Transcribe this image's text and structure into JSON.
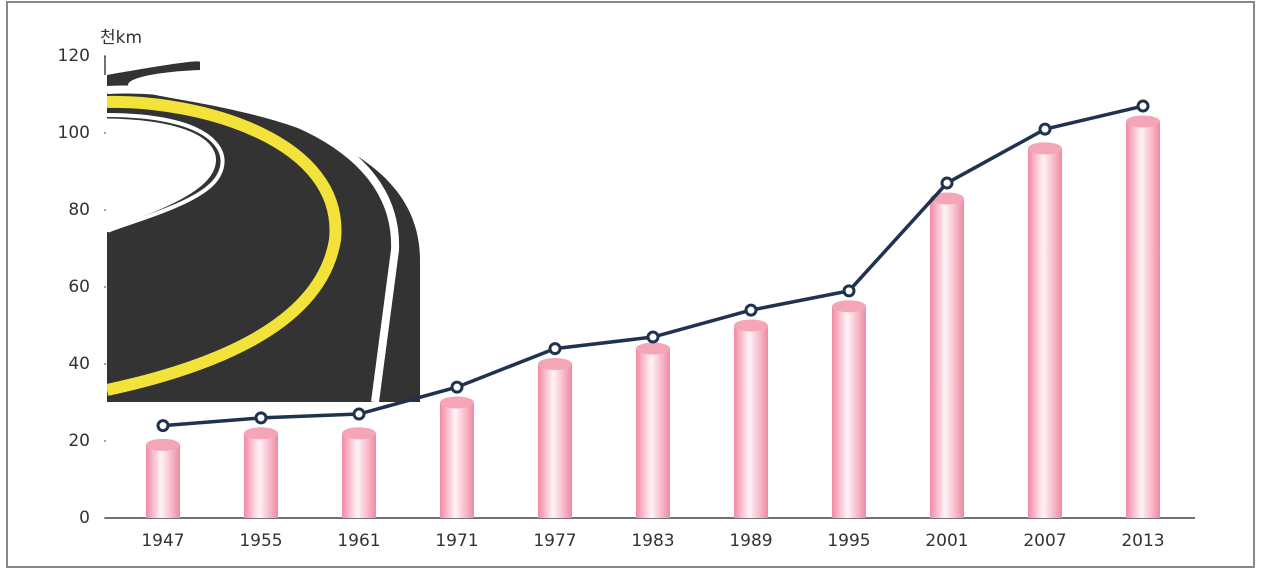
{
  "chart_data": {
    "type": "combo",
    "y_unit": "천km",
    "categories": [
      "1947",
      "1955",
      "1961",
      "1971",
      "1977",
      "1983",
      "1989",
      "1995",
      "2001",
      "2007",
      "2013"
    ],
    "series": [
      {
        "type": "bar",
        "color": "#f4a6b8",
        "values": [
          19,
          22,
          22,
          30,
          40,
          44,
          50,
          55,
          83,
          96,
          103
        ]
      },
      {
        "type": "line",
        "color": "#1f3350",
        "values": [
          24,
          26,
          27,
          34,
          44,
          47,
          54,
          59,
          87,
          101,
          107
        ]
      }
    ],
    "ylim": [
      0,
      120
    ],
    "yticks": [
      0,
      20,
      40,
      60,
      80,
      100,
      120
    ]
  }
}
